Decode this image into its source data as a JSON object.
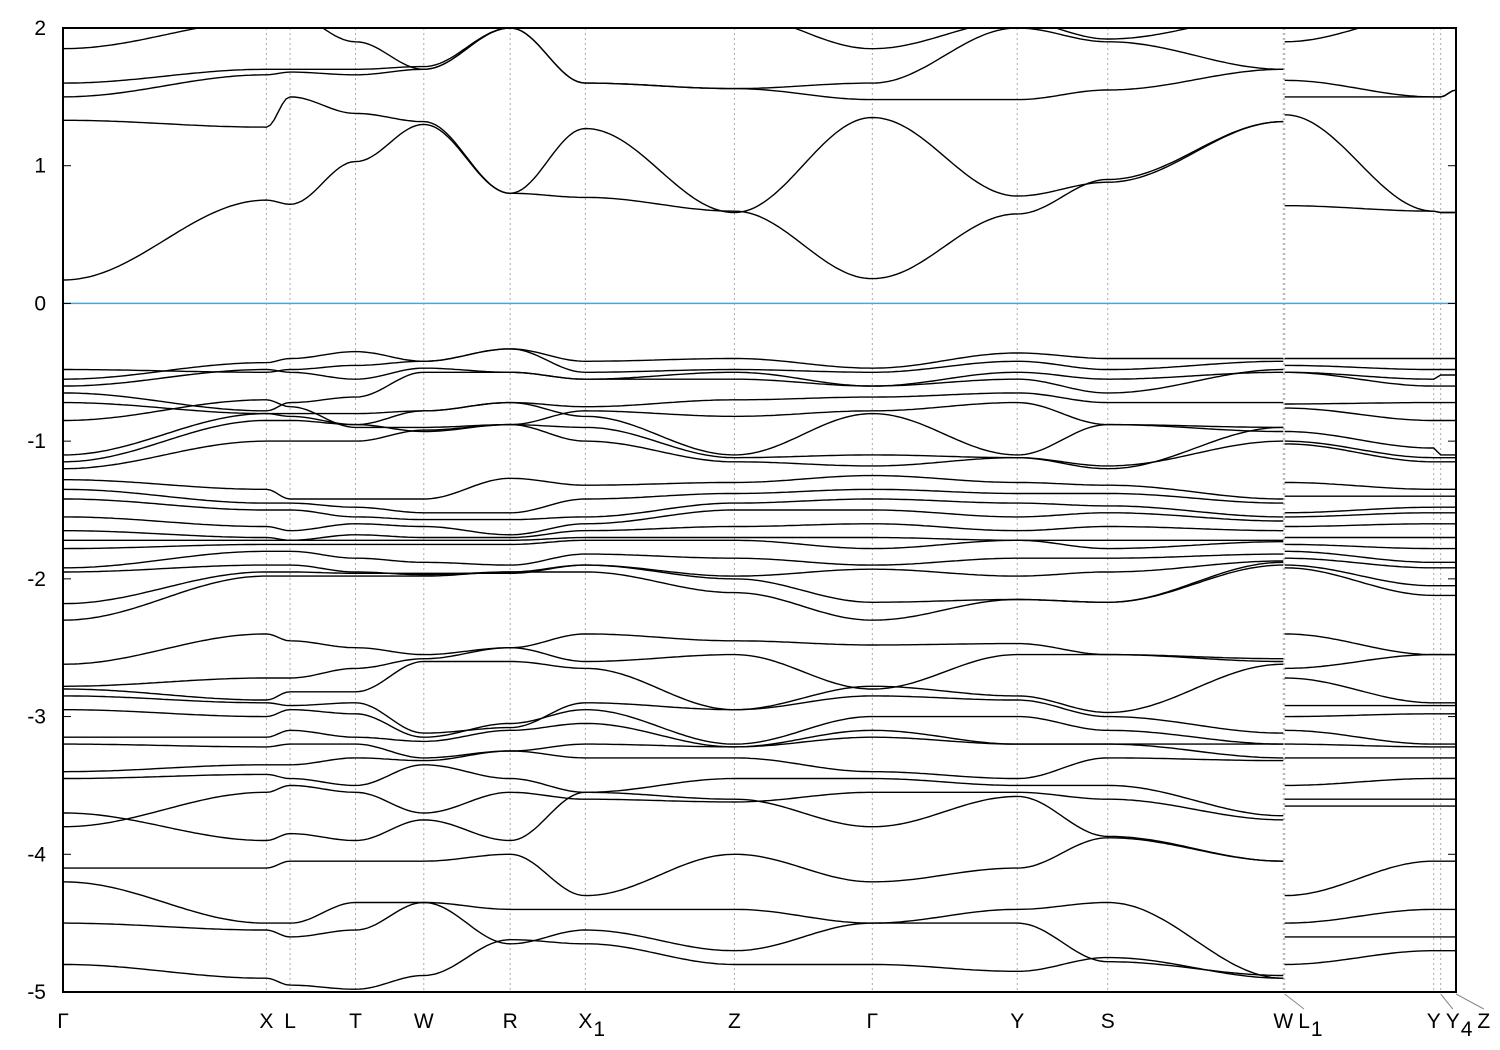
{
  "chart_data": {
    "type": "line",
    "title": "",
    "xlabel": "",
    "ylabel": "",
    "ylim": [
      -5,
      2
    ],
    "xlim": [
      0,
      1
    ],
    "grid": "vertical dotted at high-symmetry points",
    "yticks": [
      "-5",
      "-4",
      "-3",
      "-2",
      "-1",
      "0",
      "1",
      "2"
    ],
    "kpoints": [
      {
        "label": "Γ",
        "sub": "",
        "x": 0
      },
      {
        "label": "X",
        "sub": "",
        "x": 0.146
      },
      {
        "label": "L",
        "sub": "",
        "x": 0.163
      },
      {
        "label": "T",
        "sub": "",
        "x": 0.21
      },
      {
        "label": "W",
        "sub": "",
        "x": 0.259
      },
      {
        "label": "R",
        "sub": "",
        "x": 0.321
      },
      {
        "label": "X",
        "sub": "1",
        "x": 0.375
      },
      {
        "label": "Z",
        "sub": "",
        "x": 0.482
      },
      {
        "label": "Γ",
        "sub": "",
        "x": 0.581
      },
      {
        "label": "Y",
        "sub": "",
        "x": 0.685
      },
      {
        "label": "S",
        "sub": "",
        "x": 0.75
      },
      {
        "label": "W",
        "sub": "",
        "x": 0.876
      },
      {
        "label": "L",
        "sub": "1",
        "x": 0.877
      },
      {
        "label": "Y",
        "sub": "",
        "x": 0.984
      },
      {
        "label": "Y",
        "sub": "4",
        "x": 0.989
      },
      {
        "label": "Z",
        "sub": "",
        "x": 1.0
      }
    ],
    "path_break_after_index": 11,
    "fermi_level": 0,
    "colors": {
      "bands": "#000000",
      "fermi_line": "#4aa6d8",
      "grid": "#aaaaaa"
    },
    "bands": [
      [
        0.17,
        0.75,
        0.72,
        1.03,
        1.3,
        0.8,
        0.77,
        0.67,
        0.18,
        0.65,
        0.9,
        1.32,
        0.71,
        0.67,
        0.66,
        0.66
      ],
      [
        1.33,
        1.28,
        1.5,
        1.38,
        1.32,
        0.8,
        1.27,
        0.66,
        1.35,
        0.78,
        0.88,
        1.32,
        1.37,
        0.67,
        0.66,
        0.66
      ],
      [
        1.5,
        1.66,
        1.68,
        1.66,
        1.7,
        2.0,
        1.6,
        1.56,
        1.48,
        1.48,
        1.55,
        1.7,
        1.62,
        1.5,
        1.5,
        1.55
      ],
      [
        1.6,
        1.7,
        1.7,
        1.7,
        1.72,
        2.0,
        1.6,
        1.56,
        1.6,
        2.0,
        1.9,
        1.7,
        1.5,
        1.5,
        1.5,
        1.55
      ],
      [
        1.85,
        2.05,
        2.1,
        1.9,
        1.7,
        2.0,
        2.1,
        2.1,
        1.85,
        2.05,
        1.92,
        2.1,
        1.9,
        2.1,
        2.1,
        2.1
      ],
      [
        -0.48,
        -0.5,
        -0.48,
        -0.45,
        -0.42,
        -0.33,
        -0.42,
        -0.4,
        -0.47,
        -0.36,
        -0.4,
        -0.4,
        -0.4,
        -0.4,
        -0.4,
        -0.4
      ],
      [
        -0.55,
        -0.43,
        -0.4,
        -0.35,
        -0.42,
        -0.33,
        -0.5,
        -0.48,
        -0.5,
        -0.42,
        -0.48,
        -0.42,
        -0.45,
        -0.48,
        -0.48,
        -0.48
      ],
      [
        -0.6,
        -0.48,
        -0.5,
        -0.55,
        -0.47,
        -0.5,
        -0.55,
        -0.5,
        -0.6,
        -0.5,
        -0.55,
        -0.5,
        -0.5,
        -0.55,
        -0.52,
        -0.52
      ],
      [
        -0.65,
        -0.78,
        -0.72,
        -0.68,
        -0.5,
        -0.5,
        -0.55,
        -0.55,
        -0.6,
        -0.55,
        -0.65,
        -0.48,
        -0.5,
        -0.6,
        -0.6,
        -0.6
      ],
      [
        -0.72,
        -0.8,
        -0.82,
        -0.88,
        -0.78,
        -0.72,
        -0.75,
        -0.7,
        -0.68,
        -0.65,
        -0.72,
        -0.72,
        -0.73,
        -0.72,
        -0.72,
        -0.72
      ],
      [
        -0.85,
        -0.7,
        -0.75,
        -0.9,
        -0.9,
        -0.88,
        -0.78,
        -0.82,
        -0.78,
        -0.72,
        -0.88,
        -0.9,
        -0.76,
        -0.85,
        -0.85,
        -0.85
      ],
      [
        -1.1,
        -0.8,
        -0.8,
        -0.8,
        -0.78,
        -0.72,
        -0.82,
        -1.1,
        -0.8,
        -1.1,
        -0.88,
        -0.93,
        -0.93,
        -1.05,
        -1.1,
        -1.1
      ],
      [
        -1.15,
        -0.85,
        -0.85,
        -0.88,
        -0.93,
        -0.88,
        -0.9,
        -1.12,
        -1.1,
        -1.12,
        -1.2,
        -0.9,
        -1.0,
        -1.12,
        -1.12,
        -1.12
      ],
      [
        -1.2,
        -1.0,
        -1.0,
        -1.0,
        -0.92,
        -0.88,
        -1.0,
        -1.15,
        -1.18,
        -1.12,
        -1.18,
        -1.0,
        -1.02,
        -1.15,
        -1.15,
        -1.15
      ],
      [
        -1.28,
        -1.35,
        -1.42,
        -1.42,
        -1.42,
        -1.27,
        -1.32,
        -1.3,
        -1.25,
        -1.3,
        -1.32,
        -1.42,
        -1.3,
        -1.35,
        -1.35,
        -1.35
      ],
      [
        -1.35,
        -1.45,
        -1.45,
        -1.48,
        -1.52,
        -1.52,
        -1.42,
        -1.38,
        -1.35,
        -1.38,
        -1.38,
        -1.45,
        -1.4,
        -1.4,
        -1.4,
        -1.4
      ],
      [
        -1.42,
        -1.5,
        -1.5,
        -1.55,
        -1.57,
        -1.57,
        -1.55,
        -1.45,
        -1.42,
        -1.45,
        -1.47,
        -1.55,
        -1.52,
        -1.48,
        -1.48,
        -1.48
      ],
      [
        -1.55,
        -1.62,
        -1.65,
        -1.6,
        -1.62,
        -1.68,
        -1.6,
        -1.5,
        -1.5,
        -1.55,
        -1.52,
        -1.58,
        -1.55,
        -1.52,
        -1.52,
        -1.52
      ],
      [
        -1.65,
        -1.7,
        -1.72,
        -1.68,
        -1.7,
        -1.7,
        -1.65,
        -1.62,
        -1.6,
        -1.65,
        -1.62,
        -1.65,
        -1.62,
        -1.6,
        -1.6,
        -1.6
      ],
      [
        -1.72,
        -1.72,
        -1.72,
        -1.72,
        -1.72,
        -1.72,
        -1.7,
        -1.7,
        -1.7,
        -1.72,
        -1.72,
        -1.72,
        -1.7,
        -1.7,
        -1.7,
        -1.7
      ],
      [
        -1.78,
        -1.75,
        -1.75,
        -1.75,
        -1.75,
        -1.75,
        -1.72,
        -1.72,
        -1.78,
        -1.72,
        -1.78,
        -1.73,
        -1.75,
        -1.78,
        -1.78,
        -1.78
      ],
      [
        -1.92,
        -1.8,
        -1.8,
        -1.85,
        -1.88,
        -1.9,
        -1.82,
        -1.85,
        -1.9,
        -1.85,
        -1.85,
        -1.82,
        -1.8,
        -1.88,
        -1.88,
        -1.88
      ],
      [
        -1.95,
        -1.9,
        -1.9,
        -1.95,
        -1.97,
        -1.95,
        -1.9,
        -1.98,
        -1.93,
        -1.98,
        -1.95,
        -1.87,
        -1.85,
        -1.92,
        -1.92,
        -1.92
      ],
      [
        -2.3,
        -1.98,
        -1.98,
        -1.98,
        -1.98,
        -1.95,
        -1.95,
        -2.1,
        -2.3,
        -2.15,
        -2.17,
        -1.9,
        -1.92,
        -2.12,
        -2.12,
        -2.12
      ],
      [
        -2.18,
        -1.95,
        -1.95,
        -1.96,
        -1.96,
        -1.96,
        -1.9,
        -2.0,
        -2.17,
        -2.15,
        -2.17,
        -1.88,
        -1.9,
        -2.05,
        -2.05,
        -2.05
      ],
      [
        -2.62,
        -2.4,
        -2.45,
        -2.5,
        -2.55,
        -2.5,
        -2.4,
        -2.45,
        -2.48,
        -2.47,
        -2.55,
        -2.58,
        -2.4,
        -2.55,
        -2.55,
        -2.55
      ],
      [
        -2.78,
        -2.72,
        -2.72,
        -2.65,
        -2.58,
        -2.5,
        -2.6,
        -2.55,
        -2.8,
        -2.55,
        -2.55,
        -2.6,
        -2.65,
        -2.55,
        -2.55,
        -2.55
      ],
      [
        -2.8,
        -2.88,
        -2.82,
        -2.82,
        -2.6,
        -2.6,
        -2.65,
        -2.95,
        -2.78,
        -2.85,
        -2.97,
        -2.62,
        -2.72,
        -2.9,
        -2.9,
        -2.9
      ],
      [
        -2.85,
        -2.9,
        -2.92,
        -2.9,
        -3.12,
        -3.08,
        -2.9,
        -2.95,
        -2.85,
        -2.88,
        -3.0,
        -3.12,
        -2.92,
        -2.92,
        -2.92,
        -2.92
      ],
      [
        -2.95,
        -3.0,
        -2.95,
        -2.98,
        -3.15,
        -3.05,
        -2.95,
        -3.2,
        -3.0,
        -3.0,
        -3.1,
        -3.2,
        -3.0,
        -2.98,
        -2.98,
        -2.98
      ],
      [
        -3.15,
        -3.15,
        -3.1,
        -3.15,
        -3.18,
        -3.1,
        -3.05,
        -3.22,
        -3.1,
        -3.2,
        -3.2,
        -3.2,
        -3.1,
        -3.2,
        -3.2,
        -3.2
      ],
      [
        -3.2,
        -3.22,
        -3.2,
        -3.2,
        -3.3,
        -3.25,
        -3.2,
        -3.22,
        -3.15,
        -3.2,
        -3.2,
        -3.3,
        -3.2,
        -3.22,
        -3.22,
        -3.22
      ],
      [
        -3.4,
        -3.35,
        -3.35,
        -3.3,
        -3.32,
        -3.25,
        -3.3,
        -3.3,
        -3.4,
        -3.45,
        -3.3,
        -3.32,
        -3.3,
        -3.3,
        -3.3,
        -3.3
      ],
      [
        -3.45,
        -3.42,
        -3.45,
        -3.5,
        -3.35,
        -3.45,
        -3.55,
        -3.45,
        -3.45,
        -3.5,
        -3.5,
        -3.72,
        -3.5,
        -3.45,
        -3.45,
        -3.45
      ],
      [
        -3.8,
        -3.55,
        -3.5,
        -3.55,
        -3.7,
        -3.55,
        -3.6,
        -3.62,
        -3.55,
        -3.55,
        -3.6,
        -3.75,
        -3.6,
        -3.6,
        -3.6,
        -3.6
      ],
      [
        -3.7,
        -3.9,
        -3.85,
        -3.9,
        -3.75,
        -3.9,
        -3.55,
        -3.6,
        -3.8,
        -3.58,
        -3.87,
        -4.05,
        -3.65,
        -3.65,
        -3.65,
        -3.65
      ],
      [
        -4.1,
        -4.1,
        -4.05,
        -4.05,
        -4.05,
        -4.0,
        -4.3,
        -4.0,
        -4.2,
        -4.1,
        -3.88,
        -4.05,
        -4.3,
        -4.05,
        -4.05,
        -4.05
      ],
      [
        -4.2,
        -4.5,
        -4.5,
        -4.35,
        -4.35,
        -4.4,
        -4.4,
        -4.4,
        -4.5,
        -4.4,
        -4.35,
        -4.9,
        -4.5,
        -4.4,
        -4.4,
        -4.4
      ],
      [
        -4.5,
        -4.55,
        -4.6,
        -4.55,
        -4.35,
        -4.65,
        -4.55,
        -4.7,
        -4.5,
        -4.5,
        -4.78,
        -4.88,
        -4.6,
        -4.6,
        -4.6,
        -4.6
      ],
      [
        -4.8,
        -4.9,
        -4.95,
        -4.98,
        -4.88,
        -4.62,
        -4.65,
        -4.8,
        -4.8,
        -4.85,
        -4.75,
        -4.9,
        -4.8,
        -4.7,
        -4.7,
        -4.7
      ]
    ]
  }
}
